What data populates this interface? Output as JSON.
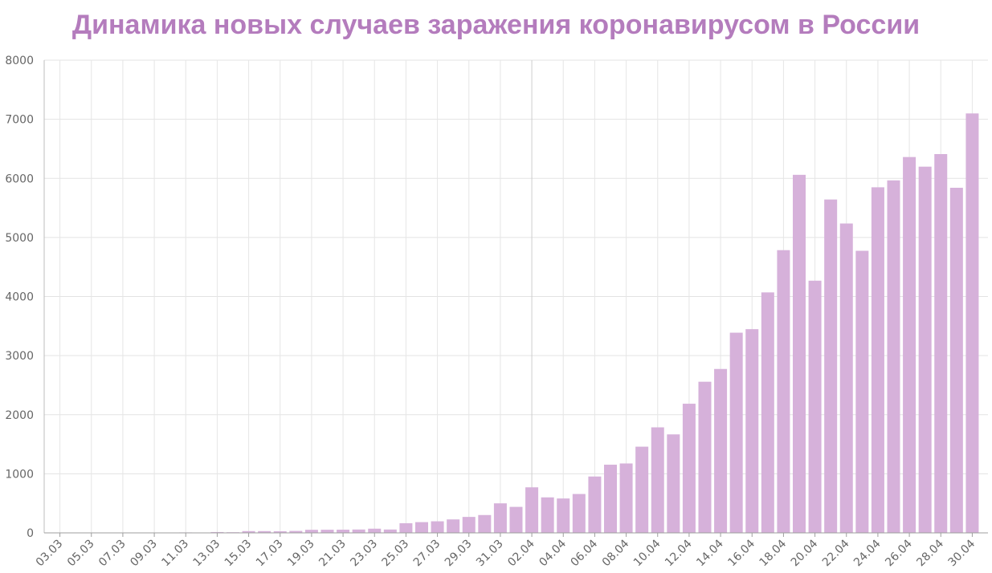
{
  "chart_data": {
    "type": "bar",
    "title": "Динамика новых случаев заражения коронавирусом в России",
    "xlabel": "",
    "ylabel": "",
    "ylim": [
      0,
      8000
    ],
    "yticks": [
      0,
      1000,
      2000,
      3000,
      4000,
      5000,
      6000,
      7000,
      8000
    ],
    "grid": true,
    "legend": "none",
    "bar_color": "#d6b1da",
    "title_color": "#b47cbd",
    "categories": [
      "03.03",
      "04.03",
      "05.03",
      "06.03",
      "07.03",
      "08.03",
      "09.03",
      "10.03",
      "11.03",
      "12.03",
      "13.03",
      "14.03",
      "15.03",
      "16.03",
      "17.03",
      "18.03",
      "19.03",
      "20.03",
      "21.03",
      "22.03",
      "23.03",
      "24.03",
      "25.03",
      "26.03",
      "27.03",
      "28.03",
      "29.03",
      "30.03",
      "31.03",
      "01.04",
      "02.04",
      "03.04",
      "04.04",
      "05.04",
      "06.04",
      "07.04",
      "08.04",
      "09.04",
      "10.04",
      "11.04",
      "12.04",
      "13.04",
      "14.04",
      "15.04",
      "16.04",
      "17.04",
      "18.04",
      "19.04",
      "20.04",
      "21.04",
      "22.04",
      "23.04",
      "24.04",
      "25.04",
      "26.04",
      "27.04",
      "28.04",
      "29.04",
      "30.04"
    ],
    "xtick_labels": [
      "03.03",
      "05.03",
      "07.03",
      "09.03",
      "11.03",
      "13.03",
      "15.03",
      "17.03",
      "19.03",
      "21.03",
      "23.03",
      "25.03",
      "27.03",
      "29.03",
      "31.03",
      "02.04",
      "04.04",
      "06.04",
      "08.04",
      "10.04",
      "12.04",
      "14.04",
      "16.04",
      "18.04",
      "20.04",
      "22.04",
      "24.04",
      "26.04",
      "28.04",
      "30.04"
    ],
    "values": [
      1,
      0,
      1,
      0,
      4,
      0,
      3,
      3,
      8,
      6,
      14,
      11,
      30,
      30,
      27,
      33,
      52,
      53,
      54,
      57,
      71,
      57,
      163,
      182,
      196,
      228,
      270,
      302,
      500,
      440,
      771,
      601,
      582,
      658,
      954,
      1154,
      1175,
      1459,
      1786,
      1667,
      2186,
      2558,
      2774,
      3388,
      3448,
      4070,
      4785,
      6060,
      4268,
      5642,
      5236,
      4774,
      5849,
      5966,
      6361,
      6198,
      6411,
      5841,
      7099
    ]
  }
}
